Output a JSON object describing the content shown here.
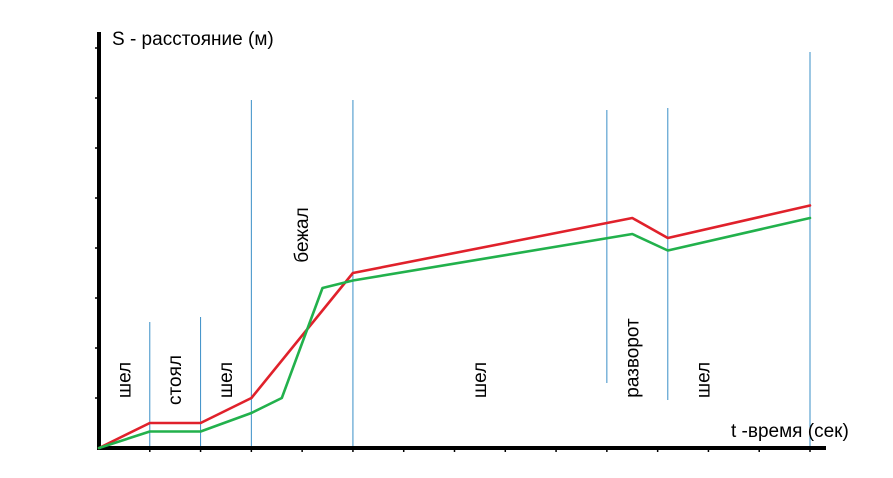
{
  "chart_data": {
    "type": "line",
    "title": "",
    "ylabel": "S - расстояние (м)",
    "xlabel": "t -время (сек)",
    "grid": false,
    "legend": "none",
    "colors": {
      "red": "#e0212b",
      "green": "#22b14c",
      "divider": "#3a8fc7",
      "axis": "#000000"
    },
    "series": [
      {
        "color": "red",
        "points": [
          [
            0,
            0
          ],
          [
            1,
            0.5
          ],
          [
            2,
            0.5
          ],
          [
            3,
            1
          ],
          [
            5,
            3.5
          ],
          [
            10.5,
            4.6
          ],
          [
            11.2,
            4.2
          ],
          [
            14,
            4.85
          ]
        ]
      },
      {
        "color": "green",
        "points": [
          [
            0,
            0
          ],
          [
            1,
            0.33
          ],
          [
            2,
            0.33
          ],
          [
            3,
            0.7
          ],
          [
            3.6,
            1
          ],
          [
            4.4,
            3.2
          ],
          [
            5,
            3.35
          ],
          [
            10.5,
            4.28
          ],
          [
            11.2,
            3.95
          ],
          [
            14,
            4.6
          ]
        ]
      }
    ],
    "dividers": [
      1,
      2,
      3,
      5,
      10,
      11.2,
      14
    ],
    "segments": [
      {
        "label": "шел",
        "x": 0.5
      },
      {
        "label": "стоял",
        "x": 1.5
      },
      {
        "label": "шел",
        "x": 2.5
      },
      {
        "label": "бежал",
        "x": 4
      },
      {
        "label": "шел",
        "x": 7.5
      },
      {
        "label": "разворот",
        "x": 10.5
      },
      {
        "label": "шел",
        "x": 11.9
      }
    ],
    "xlim": [
      0,
      14.3
    ],
    "ylim": [
      0,
      8
    ]
  }
}
